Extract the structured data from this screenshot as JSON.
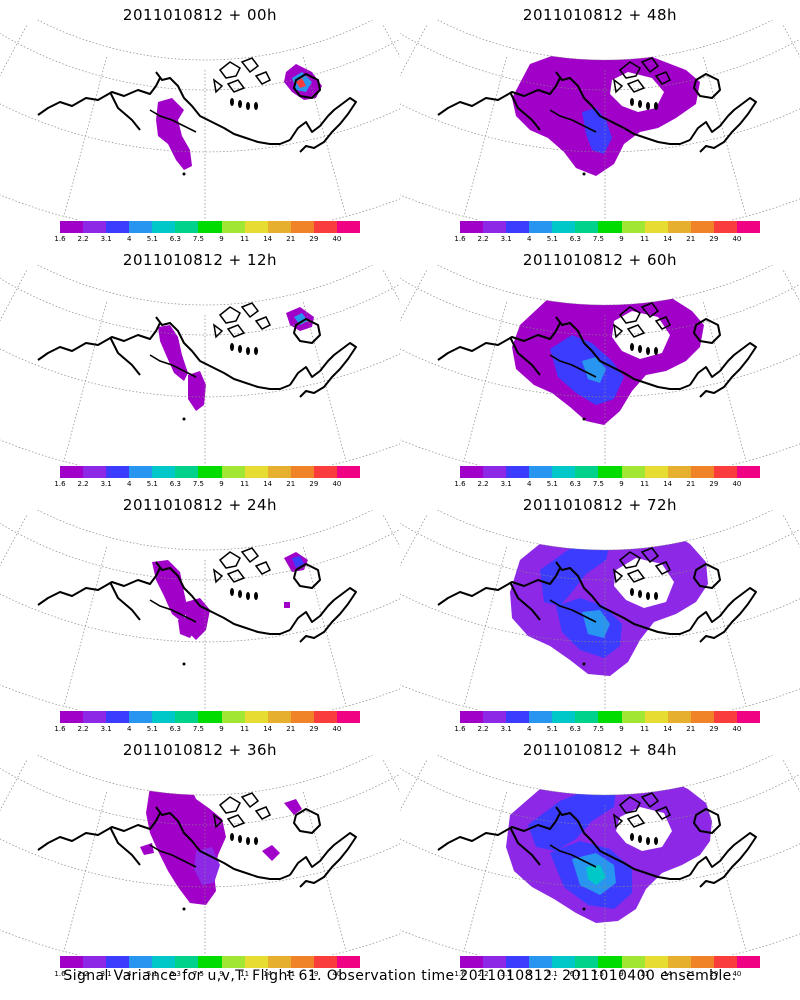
{
  "panels": [
    {
      "title": "2011010812 + 00h",
      "lead": 0
    },
    {
      "title": "2011010812 + 48h",
      "lead": 48
    },
    {
      "title": "2011010812 + 12h",
      "lead": 12
    },
    {
      "title": "2011010812 + 60h",
      "lead": 60
    },
    {
      "title": "2011010812 + 24h",
      "lead": 24
    },
    {
      "title": "2011010812 + 72h",
      "lead": 72
    },
    {
      "title": "2011010812 + 36h",
      "lead": 36
    },
    {
      "title": "2011010812 + 84h",
      "lead": 84
    }
  ],
  "colorbar": {
    "labels": [
      "1.6",
      "2.2",
      "3.1",
      "4",
      "5.1",
      "6.3",
      "7.5",
      "9",
      "11",
      "14",
      "21",
      "29",
      "40"
    ],
    "colors": [
      "#a000c8",
      "#8c28e6",
      "#3c3cff",
      "#2896f0",
      "#00c8c8",
      "#00d28c",
      "#00dc00",
      "#a0e632",
      "#e6dc32",
      "#e6af2d",
      "#f08228",
      "#fa3c3c",
      "#f00082"
    ]
  },
  "footer": "Signal Variance for u,v,T. Flight 61. Observation time 2011010812. 2011010400 ensemble."
}
